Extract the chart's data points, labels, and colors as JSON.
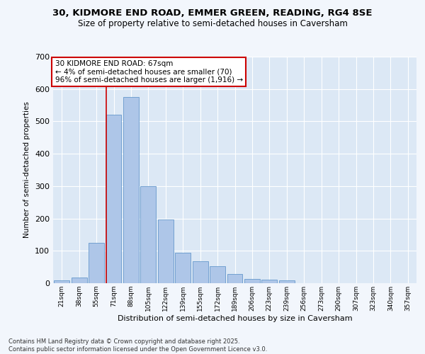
{
  "title1": "30, KIDMORE END ROAD, EMMER GREEN, READING, RG4 8SE",
  "title2": "Size of property relative to semi-detached houses in Caversham",
  "xlabel": "Distribution of semi-detached houses by size in Caversham",
  "ylabel": "Number of semi-detached properties",
  "categories": [
    "21sqm",
    "38sqm",
    "55sqm",
    "71sqm",
    "88sqm",
    "105sqm",
    "122sqm",
    "139sqm",
    "155sqm",
    "172sqm",
    "189sqm",
    "206sqm",
    "223sqm",
    "239sqm",
    "256sqm",
    "273sqm",
    "290sqm",
    "307sqm",
    "323sqm",
    "340sqm",
    "357sqm"
  ],
  "values": [
    8,
    18,
    125,
    520,
    575,
    300,
    197,
    95,
    67,
    52,
    29,
    14,
    11,
    8,
    0,
    0,
    0,
    0,
    0,
    0,
    0
  ],
  "bar_color": "#aec6e8",
  "bar_edge_color": "#6699cc",
  "vline_color": "#cc0000",
  "annotation_text": "30 KIDMORE END ROAD: 67sqm\n← 4% of semi-detached houses are smaller (70)\n96% of semi-detached houses are larger (1,916) →",
  "annotation_box_color": "#ffffff",
  "annotation_box_edge": "#cc0000",
  "ylim": [
    0,
    700
  ],
  "yticks": [
    0,
    100,
    200,
    300,
    400,
    500,
    600,
    700
  ],
  "background_color": "#dce8f5",
  "grid_color": "#ffffff",
  "fig_background": "#f2f6fc",
  "footer": "Contains HM Land Registry data © Crown copyright and database right 2025.\nContains public sector information licensed under the Open Government Licence v3.0."
}
